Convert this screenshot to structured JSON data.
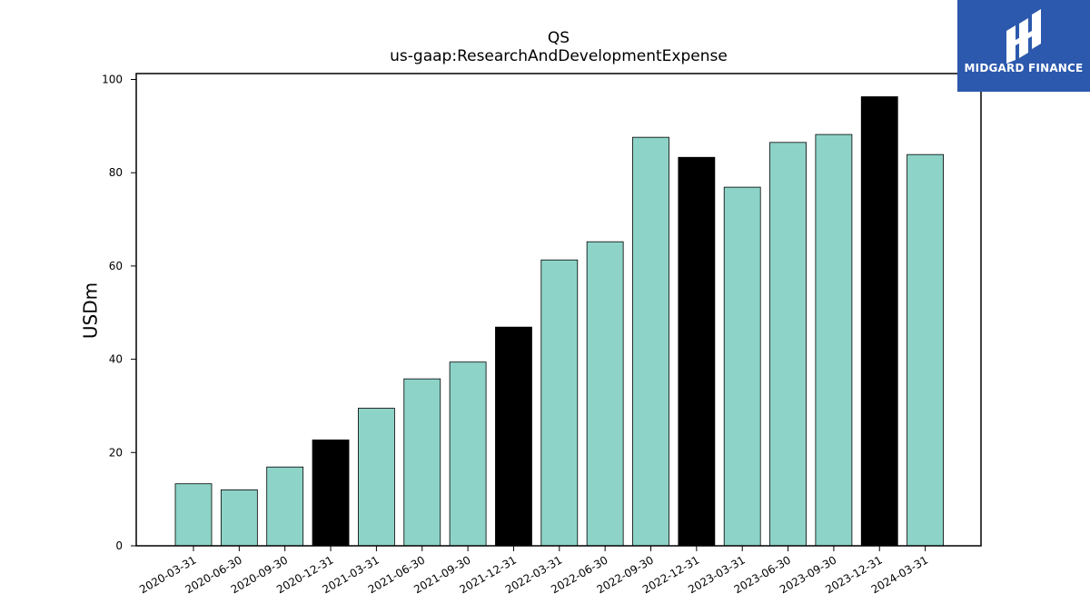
{
  "chart_data": {
    "type": "bar",
    "title": "QS",
    "subtitle": "us-gaap:ResearchAndDevelopmentExpense",
    "xlabel": "",
    "ylabel": "USDm",
    "ylim": [
      0,
      100
    ],
    "yticks": [
      0,
      20,
      40,
      60,
      80,
      100
    ],
    "grid": false,
    "categories": [
      "2020-03-31",
      "2020-06-30",
      "2020-09-30",
      "2020-12-31",
      "2021-03-31",
      "2021-06-30",
      "2021-09-30",
      "2021-12-31",
      "2022-03-31",
      "2022-06-30",
      "2022-09-30",
      "2022-12-31",
      "2023-03-31",
      "2023-06-30",
      "2023-09-30",
      "2023-12-31",
      "2024-03-31"
    ],
    "values": [
      13.3,
      12.0,
      16.9,
      22.7,
      29.5,
      35.8,
      39.4,
      46.9,
      61.3,
      65.2,
      87.6,
      83.3,
      76.9,
      86.5,
      88.2,
      96.3,
      83.9
    ],
    "highlight": [
      false,
      false,
      false,
      true,
      false,
      false,
      false,
      true,
      false,
      false,
      false,
      true,
      false,
      false,
      false,
      true,
      false
    ],
    "colors": {
      "normal": "#8dd3c7",
      "highlight": "#000000",
      "edge": "#000000"
    }
  },
  "logo": {
    "text": "MIDGARD FINANCE",
    "background": "#2c59ad"
  }
}
